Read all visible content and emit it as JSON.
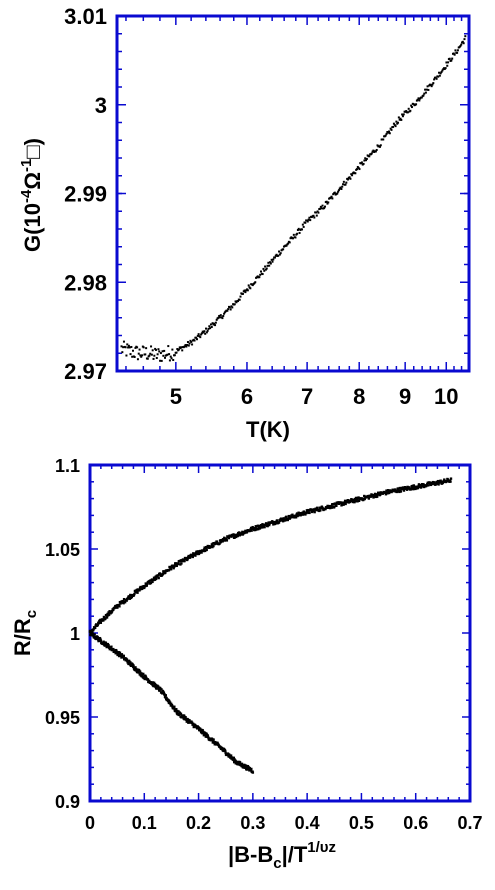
{
  "chart_data": [
    {
      "type": "scatter",
      "xscale": "log",
      "xlabel": "T(K)",
      "ylabel_parts": {
        "base": "G(10",
        "exp1": "-4",
        "omega": "Ω",
        "exp2": "-1",
        "square": "□",
        "close": ")"
      },
      "xlim": [
        4.3,
        10.6
      ],
      "ylim": [
        2.97,
        3.01
      ],
      "xticks": [
        5,
        6,
        7,
        8,
        9,
        10
      ],
      "xtick_labels": [
        "5",
        "6",
        "7",
        "8",
        "9",
        "10"
      ],
      "yticks": [
        2.97,
        2.98,
        2.99,
        3.0,
        3.01
      ],
      "ytick_labels": [
        "2.97",
        "2.98",
        "2.99",
        "3",
        "3.01"
      ],
      "series": [
        {
          "values_xy": [
            [
              4.35,
              2.9725
            ],
            [
              4.45,
              2.9722
            ],
            [
              4.55,
              2.972
            ],
            [
              4.65,
              2.972
            ],
            [
              4.75,
              2.9718
            ],
            [
              4.85,
              2.9719
            ],
            [
              5.0,
              2.9722
            ],
            [
              5.2,
              2.9732
            ],
            [
              5.4,
              2.9745
            ],
            [
              5.6,
              2.976
            ],
            [
              5.8,
              2.9775
            ],
            [
              6.0,
              2.9792
            ],
            [
              6.25,
              2.9812
            ],
            [
              6.5,
              2.9832
            ],
            [
              6.75,
              2.985
            ],
            [
              7.0,
              2.9868
            ],
            [
              7.3,
              2.9885
            ],
            [
              7.6,
              2.9905
            ],
            [
              8.0,
              2.993
            ],
            [
              8.4,
              2.9953
            ],
            [
              8.8,
              2.998
            ],
            [
              9.2,
              3.0
            ],
            [
              9.6,
              3.0022
            ],
            [
              10.0,
              3.0045
            ],
            [
              10.3,
              3.0062
            ],
            [
              10.5,
              3.0075
            ]
          ],
          "spread": 0.0004,
          "note_band": [
            [
              4.3,
              4.9,
              0.0008
            ]
          ]
        }
      ],
      "grid": false,
      "color": "#000000"
    },
    {
      "type": "scatter",
      "xlabel_parts": {
        "a": "|B-B",
        "sub": "c",
        "b": "|/T",
        "sup": "1/υz"
      },
      "ylabel_parts": {
        "base": "R/R",
        "sub": "c"
      },
      "xlim": [
        0,
        0.7
      ],
      "ylim": [
        0.9,
        1.1
      ],
      "xticks": [
        0,
        0.1,
        0.2,
        0.3,
        0.4,
        0.5,
        0.6,
        0.7
      ],
      "xtick_labels": [
        "0",
        "0.1",
        "0.2",
        "0.3",
        "0.4",
        "0.5",
        "0.6",
        "0.7"
      ],
      "yticks": [
        0.9,
        0.95,
        1.0,
        1.05,
        1.1
      ],
      "ytick_labels": [
        "0.9",
        "0.95",
        "1",
        "1.05",
        "1.1"
      ],
      "series": [
        {
          "name_key": "upper",
          "values_xy": [
            [
              0,
              1.0
            ],
            [
              0.02,
              1.007
            ],
            [
              0.05,
              1.016
            ],
            [
              0.1,
              1.028
            ],
            [
              0.15,
              1.039
            ],
            [
              0.2,
              1.048
            ],
            [
              0.25,
              1.056
            ],
            [
              0.3,
              1.062
            ],
            [
              0.35,
              1.067
            ],
            [
              0.4,
              1.072
            ],
            [
              0.45,
              1.076
            ],
            [
              0.5,
              1.08
            ],
            [
              0.55,
              1.084
            ],
            [
              0.6,
              1.087
            ],
            [
              0.65,
              1.09
            ],
            [
              0.665,
              1.091
            ]
          ]
        },
        {
          "name_key": "lower",
          "values_xy": [
            [
              0,
              1.0
            ],
            [
              0.03,
              0.993
            ],
            [
              0.06,
              0.986
            ],
            [
              0.1,
              0.974
            ],
            [
              0.13,
              0.966
            ],
            [
              0.16,
              0.953
            ],
            [
              0.2,
              0.943
            ],
            [
              0.24,
              0.932
            ],
            [
              0.27,
              0.923
            ],
            [
              0.3,
              0.918
            ]
          ]
        }
      ],
      "grid": false,
      "color": "#000000"
    }
  ]
}
